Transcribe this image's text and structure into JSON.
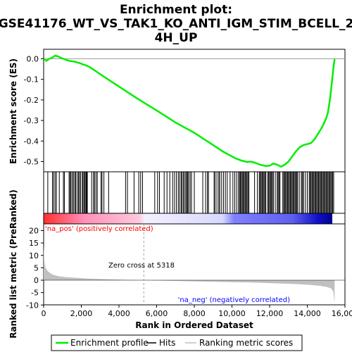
{
  "title": {
    "line1": "Enrichment plot:",
    "line2": "GSE41176_WT_VS_TAK1_KO_ANTI_IGM_STIM_BCELL_2",
    "line3": "4H_UP"
  },
  "colors": {
    "enrichment_line": "#00ee00",
    "hits": "#000000",
    "metric_fill": "#c0c0c0",
    "positive_label": "#ff0000",
    "negative_label": "#0000ff",
    "zero_line": "#a0a0a0"
  },
  "chart_data": [
    {
      "type": "line",
      "name": "enrichment-profile",
      "ylabel": "Enrichment score (ES)",
      "xlim": [
        0,
        15500
      ],
      "ylim": [
        -0.56,
        0.04
      ],
      "yticks": [
        "0.0",
        "-0.1",
        "-0.2",
        "-0.3",
        "-0.4",
        "-0.5"
      ],
      "x": [
        0,
        150,
        300,
        450,
        600,
        750,
        900,
        1050,
        1200,
        1350,
        1500,
        1650,
        1800,
        1950,
        2100,
        2250,
        2400,
        2600,
        2800,
        3000,
        3500,
        4000,
        4500,
        5000,
        5318,
        5800,
        6500,
        7000,
        7500,
        8000,
        8500,
        9000,
        9500,
        10000,
        10200,
        10500,
        10800,
        11000,
        11200,
        11500,
        11800,
        12000,
        12200,
        12400,
        12600,
        12800,
        13000,
        13200,
        13400,
        13600,
        13800,
        14000,
        14200,
        14400,
        14600,
        14800,
        15000,
        15100,
        15200,
        15300,
        15380,
        15450
      ],
      "y": [
        0.0,
        -0.01,
        0.0,
        0.005,
        0.015,
        0.012,
        0.005,
        0.0,
        -0.005,
        -0.01,
        -0.012,
        -0.014,
        -0.018,
        -0.022,
        -0.028,
        -0.032,
        -0.038,
        -0.05,
        -0.062,
        -0.075,
        -0.105,
        -0.135,
        -0.165,
        -0.195,
        -0.213,
        -0.24,
        -0.28,
        -0.31,
        -0.335,
        -0.36,
        -0.39,
        -0.42,
        -0.45,
        -0.475,
        -0.485,
        -0.495,
        -0.502,
        -0.5,
        -0.505,
        -0.515,
        -0.522,
        -0.52,
        -0.51,
        -0.515,
        -0.525,
        -0.515,
        -0.5,
        -0.475,
        -0.45,
        -0.43,
        -0.42,
        -0.415,
        -0.41,
        -0.39,
        -0.36,
        -0.33,
        -0.29,
        -0.26,
        -0.2,
        -0.12,
        -0.05,
        0.0
      ]
    },
    {
      "type": "hits",
      "name": "hits",
      "xlim": [
        0,
        15500
      ],
      "positions": [
        220,
        470,
        530,
        610,
        680,
        830,
        1050,
        1100,
        1350,
        1400,
        1450,
        1520,
        1580,
        1650,
        1700,
        1780,
        1850,
        1900,
        1960,
        2050,
        2090,
        2150,
        2200,
        2250,
        2280,
        2320,
        2550,
        2650,
        2700,
        2780,
        2850,
        3050,
        3100,
        3200,
        3450,
        4350,
        4450,
        4800,
        5050,
        5150,
        5250,
        5900,
        6050,
        6150,
        6400,
        6550,
        6700,
        6850,
        6950,
        7050,
        7150,
        7220,
        7300,
        7350,
        7420,
        7480,
        7550,
        7600,
        7650,
        7700,
        7780,
        7850,
        8000,
        8450,
        8600,
        8700,
        8750,
        9050,
        9100,
        9200,
        9300,
        9350,
        9450,
        9550,
        9650,
        9750,
        9900,
        10050,
        10150,
        10250,
        10350,
        10400,
        10450,
        10500,
        10550,
        10600,
        10650,
        10700,
        10750,
        10800,
        10850,
        10900,
        11200,
        11350,
        11450,
        11500,
        11550,
        11600,
        11650,
        11700,
        11750,
        11800,
        11900,
        11950,
        12000,
        12050,
        12100,
        12150,
        12200,
        12300,
        12400,
        12450,
        12500,
        12550,
        12700,
        12750,
        12800,
        12850,
        12900,
        12950,
        13000,
        13050,
        13100,
        13150,
        13200,
        13250,
        13300,
        13350,
        13400,
        13450,
        13500,
        13600,
        13700,
        13750,
        13800,
        13900,
        14000,
        14100,
        14150,
        14200,
        14250,
        14300,
        14350,
        14400,
        14450,
        14500,
        14550,
        14600,
        14650,
        14700,
        14750,
        14800,
        14850,
        14900,
        14950,
        15000,
        15050,
        15100,
        15150,
        15200,
        15250,
        15300,
        15350,
        15400
      ]
    },
    {
      "type": "area",
      "name": "ranked-list-metric",
      "ylabel": "Ranked list metric (PreRanked)",
      "xlabel": "Rank in Ordered Dataset",
      "xlim": [
        0,
        16000
      ],
      "ylim": [
        -10,
        20
      ],
      "yticks": [
        "20",
        "15",
        "10",
        "5",
        "0",
        "-5",
        "-10"
      ],
      "xticks": [
        "0",
        "2,000",
        "4,000",
        "6,000",
        "8,000",
        "10,000",
        "12,000",
        "14,000",
        "16,000"
      ],
      "x": [
        0,
        20,
        50,
        100,
        200,
        350,
        500,
        800,
        1200,
        1800,
        2500,
        3500,
        4500,
        5318,
        6500,
        8000,
        9500,
        11000,
        12500,
        13500,
        14200,
        14700,
        15000,
        15200,
        15300,
        15380,
        15450
      ],
      "y": [
        14,
        11,
        7,
        5,
        3.8,
        2.8,
        2.2,
        1.6,
        1.2,
        0.9,
        0.6,
        0.35,
        0.15,
        0.0,
        -0.2,
        -0.45,
        -0.7,
        -0.95,
        -1.3,
        -1.6,
        -1.9,
        -2.3,
        -2.7,
        -3.1,
        -3.6,
        -4.5,
        -9.0
      ],
      "zero_cross_label": "Zero cross at 5318",
      "zero_cross_rank": 5318,
      "positive_label": "'na_pos' (positively correlated)",
      "negative_label": "'na_neg' (negatively correlated)"
    }
  ],
  "legend": {
    "items": [
      {
        "label": "Enrichment profile",
        "style": "line",
        "color": "#00ee00"
      },
      {
        "label": "Hits",
        "style": "line",
        "color": "#000000"
      },
      {
        "label": "Ranking metric scores",
        "style": "line",
        "color": "#c0c0c0"
      }
    ]
  }
}
